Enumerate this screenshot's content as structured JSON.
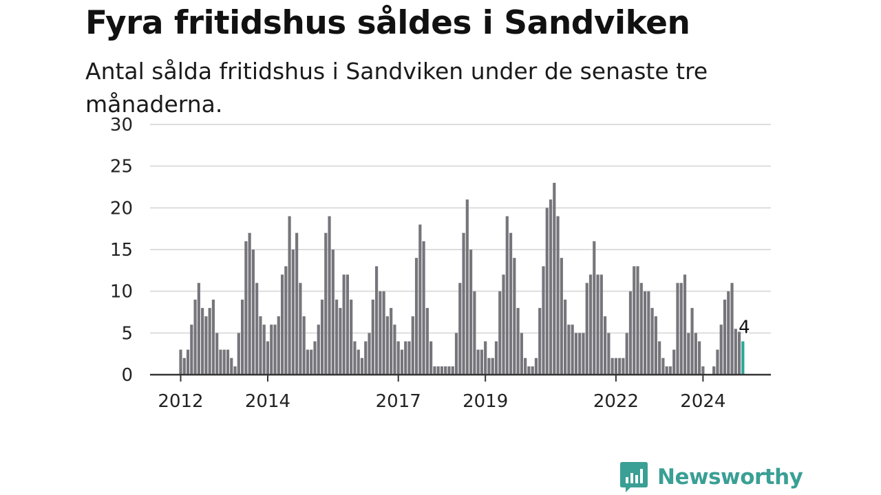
{
  "header": {
    "title": "Fyra fritidshus såldes i Sandviken",
    "subtitle": "Antal sålda fritidshus i Sandviken under de senaste tre månaderna."
  },
  "brand": {
    "name": "Newsworthy",
    "color": "#3a9f95",
    "icon": "newsworthy-logo-icon"
  },
  "colors": {
    "bar": "#76757b",
    "highlight": "#2aa79b",
    "grid": "#dddddd",
    "axis": "#333333"
  },
  "chart_data": {
    "type": "bar",
    "title": "Fyra fritidshus såldes i Sandviken",
    "subtitle": "Antal sålda fritidshus i Sandviken under de senaste tre månaderna.",
    "xlabel": "",
    "ylabel": "",
    "ylim": [
      0,
      30
    ],
    "yticks": [
      0,
      5,
      10,
      15,
      20,
      25,
      30
    ],
    "x_tick_labels": [
      "2012",
      "2014",
      "2017",
      "2019",
      "2022",
      "2024"
    ],
    "grid": true,
    "legend": "none",
    "highlight": {
      "label": "4",
      "value": 4
    },
    "values": [
      3,
      2,
      3,
      6,
      9,
      11,
      8,
      7,
      8,
      9,
      5,
      3,
      3,
      3,
      2,
      1,
      5,
      9,
      16,
      17,
      15,
      11,
      7,
      6,
      4,
      6,
      6,
      7,
      12,
      13,
      19,
      15,
      17,
      11,
      7,
      3,
      3,
      4,
      6,
      9,
      17,
      19,
      15,
      9,
      8,
      12,
      12,
      9,
      4,
      3,
      2,
      4,
      5,
      9,
      13,
      10,
      10,
      7,
      8,
      6,
      4,
      3,
      4,
      4,
      7,
      14,
      18,
      16,
      8,
      4,
      1,
      1,
      1,
      1,
      1,
      1,
      5,
      11,
      17,
      21,
      15,
      10,
      3,
      3,
      4,
      2,
      2,
      4,
      10,
      12,
      19,
      17,
      14,
      8,
      5,
      2,
      1,
      1,
      2,
      8,
      13,
      20,
      21,
      23,
      19,
      14,
      9,
      6,
      6,
      5,
      5,
      5,
      11,
      12,
      16,
      12,
      12,
      7,
      5,
      2,
      2,
      2,
      2,
      5,
      10,
      13,
      13,
      11,
      10,
      10,
      8,
      7,
      4,
      2,
      1,
      1,
      3,
      11,
      11,
      12,
      5,
      8,
      5,
      4,
      1,
      0,
      0,
      1,
      3,
      6,
      9,
      10,
      11,
      5.5,
      5.5,
      4
    ]
  }
}
